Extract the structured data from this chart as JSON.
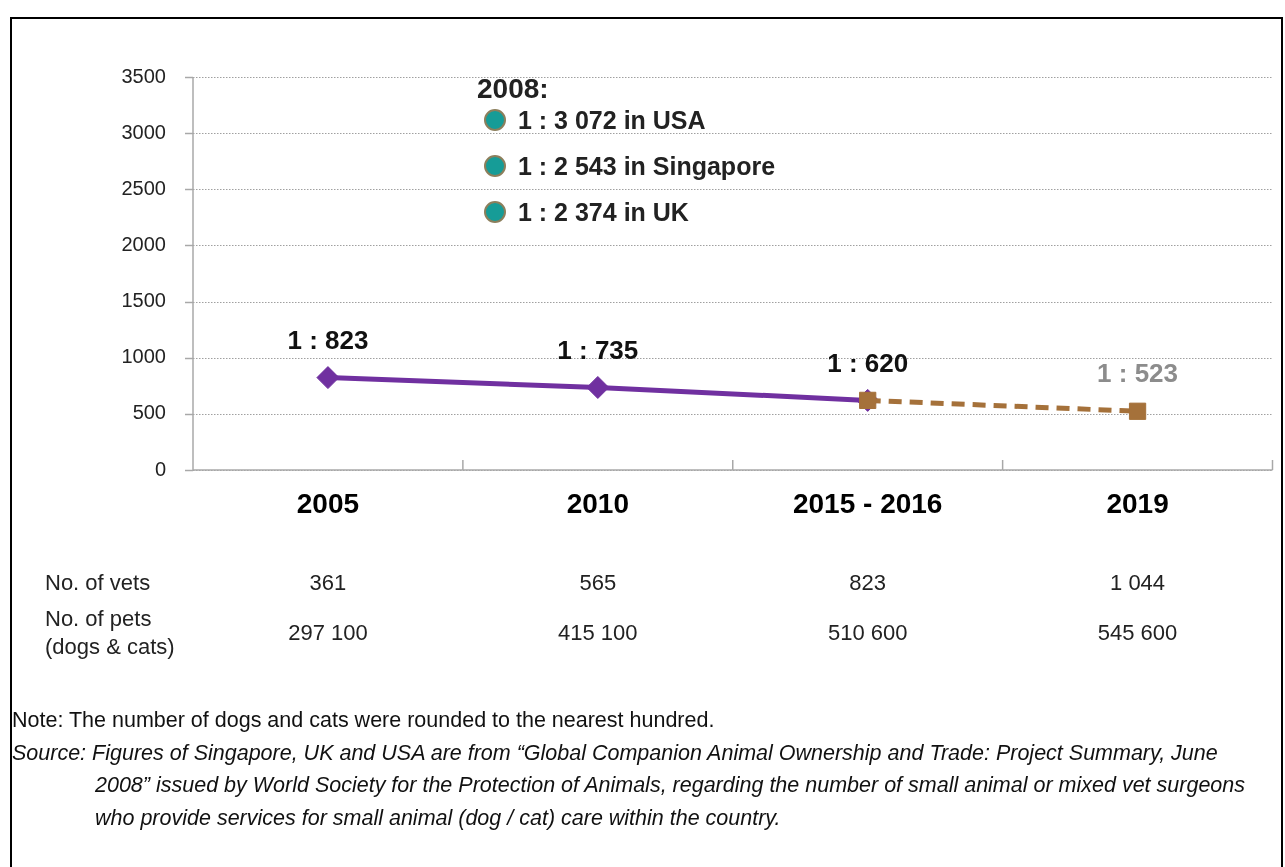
{
  "chart_data": [
    {
      "type": "line",
      "categories": [
        "2005",
        "2010",
        "2015 - 2016",
        "2019"
      ],
      "series": [
        {
          "color": "#7030a0",
          "marker": "diamond",
          "line_style": "solid",
          "values": [
            823,
            735,
            620,
            null
          ],
          "value_labels": [
            "1 : 823",
            "1 : 735",
            "1 : 620",
            null
          ]
        },
        {
          "color": "#a5713a",
          "marker": "square",
          "line_style": "dashed",
          "values": [
            null,
            null,
            620,
            523
          ],
          "value_labels": [
            null,
            null,
            null,
            "1 : 523"
          ]
        }
      ],
      "ylim": [
        0,
        3500
      ],
      "yticks": [
        0,
        500,
        1000,
        1500,
        2000,
        2500,
        3000,
        3500
      ],
      "grid": "y",
      "annotations": [
        "2008:",
        "1 : 3 072 in USA",
        "1 : 2 543 in Singapore",
        "1 : 2 374 in UK"
      ]
    },
    {
      "type": "other",
      "annotations": [
        "No. of vets",
        "361",
        "565",
        "823",
        "1 044",
        "No. of pets\n(dogs & cats)",
        "297 100",
        "415 100",
        "510 600",
        "545 600"
      ]
    },
    {
      "type": "other",
      "annotations": [
        "Note: The number of dogs and cats were rounded to the nearest hundred.",
        "Source: Figures of Singapore, UK and USA are from “Global Companion Animal Ownership and Trade: Project Summary, June 2008” issued by World Society for the Protection of Animals, regarding the number of small animal or mixed vet surgeons who provide services for small animal (dog / cat) care within the country."
      ]
    }
  ]
}
